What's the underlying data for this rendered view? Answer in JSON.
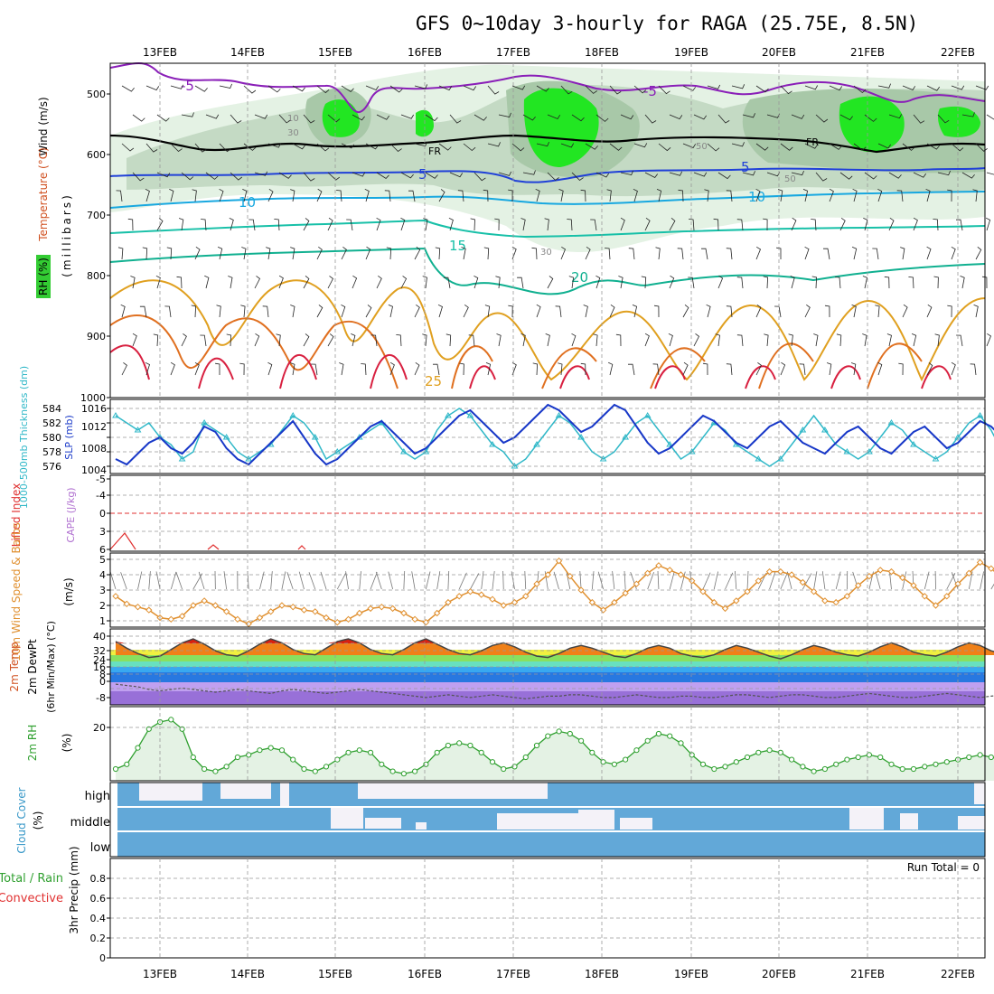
{
  "chart_data": {
    "type": "line",
    "title": "GFS 0~10day 3-hourly for RAGA (25.75E, 8.5N)",
    "date_labels": [
      "13FEB",
      "14FEB",
      "15FEB",
      "16FEB",
      "17FEB",
      "18FEB",
      "19FEB",
      "20FEB",
      "21FEB",
      "22FEB"
    ],
    "panels": {
      "upper": {
        "ylabels": [
          "Wind (m/s)",
          "Temperature (°C)",
          "RH (%)",
          "(millibars)"
        ],
        "yticks": [
          "500",
          "600",
          "700",
          "800",
          "900",
          "1000"
        ],
        "contour_labels": [
          "-5",
          "-5",
          "FR",
          "FR",
          "5",
          "5",
          "10",
          "10",
          "15",
          "20",
          "25",
          "10",
          "30",
          "50",
          "50",
          "30"
        ]
      },
      "thickness_slp": {
        "ylabels": [
          "1000-500mb Thickness (dm)",
          "SLP (mb)"
        ],
        "thickness_ticks": [
          "584",
          "582",
          "580",
          "578",
          "576"
        ],
        "slp_ticks": [
          "1016",
          "1012",
          "1008",
          "1004"
        ],
        "thickness": [
          583,
          582,
          581,
          582,
          580,
          579,
          577,
          578,
          582,
          581,
          580,
          578,
          577,
          578,
          579,
          581,
          583,
          582,
          580,
          577,
          578,
          579,
          580,
          581,
          582,
          580,
          578,
          577,
          578,
          581,
          583,
          584,
          583,
          581,
          579,
          578,
          576,
          577,
          579,
          581,
          583,
          582,
          580,
          578,
          577,
          578,
          580,
          582,
          583,
          581,
          579,
          577,
          578,
          580,
          582,
          581,
          579,
          578,
          577,
          576,
          577,
          579,
          581,
          583,
          581,
          579,
          578,
          577,
          578,
          580,
          582,
          581,
          579,
          578,
          577,
          578,
          580,
          582,
          583,
          581,
          578
        ],
        "slp": [
          1006,
          1005,
          1007,
          1009,
          1010,
          1008,
          1007,
          1009,
          1012,
          1011,
          1008,
          1006,
          1005,
          1007,
          1009,
          1011,
          1013,
          1010,
          1007,
          1005,
          1006,
          1008,
          1010,
          1012,
          1013,
          1011,
          1009,
          1007,
          1008,
          1010,
          1012,
          1014,
          1015,
          1013,
          1011,
          1009,
          1010,
          1012,
          1014,
          1016,
          1015,
          1013,
          1011,
          1012,
          1014,
          1016,
          1015,
          1012,
          1009,
          1007,
          1008,
          1010,
          1012,
          1014,
          1013,
          1011,
          1009,
          1008,
          1010,
          1012,
          1013,
          1011,
          1009,
          1008,
          1007,
          1009,
          1011,
          1012,
          1010,
          1008,
          1007,
          1009,
          1011,
          1012,
          1010,
          1008,
          1009,
          1011,
          1013,
          1012,
          1010
        ]
      },
      "cape_li": {
        "ylabels": [
          "CAPE (J/kg)",
          "Lifted Index"
        ],
        "yticks": [
          "-5",
          "-4",
          "0",
          "3",
          "6"
        ]
      },
      "wind10m": {
        "ylabels": [
          "10m Wind Speed & Barbs",
          "(m/s)"
        ],
        "yticks": [
          "5",
          "4",
          "3",
          "2",
          "1"
        ],
        "speed": [
          2.6,
          2.1,
          1.9,
          1.7,
          1.2,
          1.1,
          1.3,
          2.0,
          2.3,
          2.0,
          1.6,
          1.1,
          0.8,
          1.2,
          1.6,
          2.0,
          1.9,
          1.7,
          1.6,
          1.2,
          0.9,
          1.1,
          1.5,
          1.8,
          1.9,
          1.8,
          1.5,
          1.1,
          0.9,
          1.5,
          2.2,
          2.6,
          2.9,
          2.7,
          2.4,
          2.0,
          2.2,
          2.6,
          3.4,
          4.0,
          4.9,
          3.9,
          3.0,
          2.2,
          1.7,
          2.2,
          2.8,
          3.4,
          4.1,
          4.6,
          4.3,
          4.0,
          3.6,
          2.9,
          2.2,
          1.8,
          2.3,
          2.9,
          3.6,
          4.2,
          4.2,
          4.0,
          3.5,
          2.9,
          2.3,
          2.2,
          2.6,
          3.3,
          3.9,
          4.3,
          4.2,
          3.8,
          3.3,
          2.6,
          2.0,
          2.6,
          3.4,
          4.1,
          4.8,
          4.4,
          3.8
        ]
      },
      "temp2m": {
        "ylabels": [
          "2m Temp",
          "2m DewPt",
          "(6hr Min/Max) (°C)"
        ],
        "yticks": [
          "40",
          "32",
          "24",
          "16",
          "8",
          "0",
          "-8"
        ],
        "temp": [
          36,
          31,
          27,
          24,
          25,
          30,
          35,
          38,
          34,
          29,
          26,
          25,
          29,
          34,
          38,
          35,
          30,
          27,
          26,
          31,
          36,
          38,
          35,
          30,
          27,
          26,
          30,
          35,
          38,
          34,
          30,
          27,
          26,
          29,
          33,
          35,
          32,
          28,
          25,
          24,
          27,
          31,
          33,
          31,
          28,
          25,
          24,
          27,
          31,
          33,
          31,
          27,
          25,
          24,
          26,
          30,
          33,
          31,
          28,
          25,
          23,
          26,
          30,
          33,
          31,
          28,
          26,
          25,
          28,
          32,
          35,
          32,
          28,
          26,
          25,
          28,
          32,
          35,
          33,
          29,
          27
        ],
        "dewpt": [
          4,
          3,
          2,
          0,
          -1,
          0,
          1,
          0,
          -1,
          -2,
          -1,
          0,
          -1,
          -2,
          -3,
          -1,
          0,
          -1,
          -2,
          -3,
          -2,
          -1,
          0,
          -1,
          -2,
          -3,
          -4,
          -5,
          -6,
          -5,
          -4,
          -5,
          -6,
          -5,
          -4,
          -5,
          -6,
          -7,
          -6,
          -5,
          -5,
          -4,
          -4,
          -5,
          -6,
          -6,
          -5,
          -4,
          -5,
          -6,
          -6,
          -5,
          -5,
          -6,
          -6,
          -5,
          -4,
          -4,
          -5,
          -6,
          -5,
          -4,
          -4,
          -5,
          -6,
          -6,
          -5,
          -4,
          -3,
          -4,
          -5,
          -6,
          -6,
          -5,
          -4,
          -3,
          -4,
          -5,
          -6,
          -5,
          -4
        ]
      },
      "rh2m": {
        "ylabels": [
          "2m RH",
          "(%)"
        ],
        "yticks": [
          "20"
        ],
        "rh": [
          5,
          7,
          14,
          22,
          25,
          26,
          22,
          10,
          5,
          4,
          6,
          10,
          11,
          13,
          14,
          13,
          9,
          5,
          4,
          6,
          9,
          12,
          13,
          12,
          7,
          4,
          3,
          4,
          7,
          12,
          15,
          16,
          15,
          12,
          8,
          5,
          6,
          10,
          15,
          19,
          21,
          20,
          17,
          12,
          8,
          7,
          9,
          13,
          17,
          20,
          19,
          16,
          11,
          7,
          5,
          6,
          8,
          10,
          12,
          13,
          12,
          9,
          6,
          4,
          5,
          7,
          9,
          10,
          11,
          10,
          7,
          5,
          5,
          6,
          7,
          8,
          9,
          10,
          11,
          10,
          9
        ]
      },
      "cloud": {
        "ylabels": [
          "Cloud Cover",
          "(%)"
        ],
        "layer_labels": [
          "high",
          "middle",
          "low"
        ]
      },
      "precip": {
        "ylabels": [
          "Total / Rain",
          "Convective",
          "3hr Precip (mm)"
        ],
        "yticks": [
          "0.8",
          "0.6",
          "0.4",
          "0.2",
          "0"
        ],
        "run_total_text": "Run Total = 0",
        "values": []
      }
    }
  }
}
